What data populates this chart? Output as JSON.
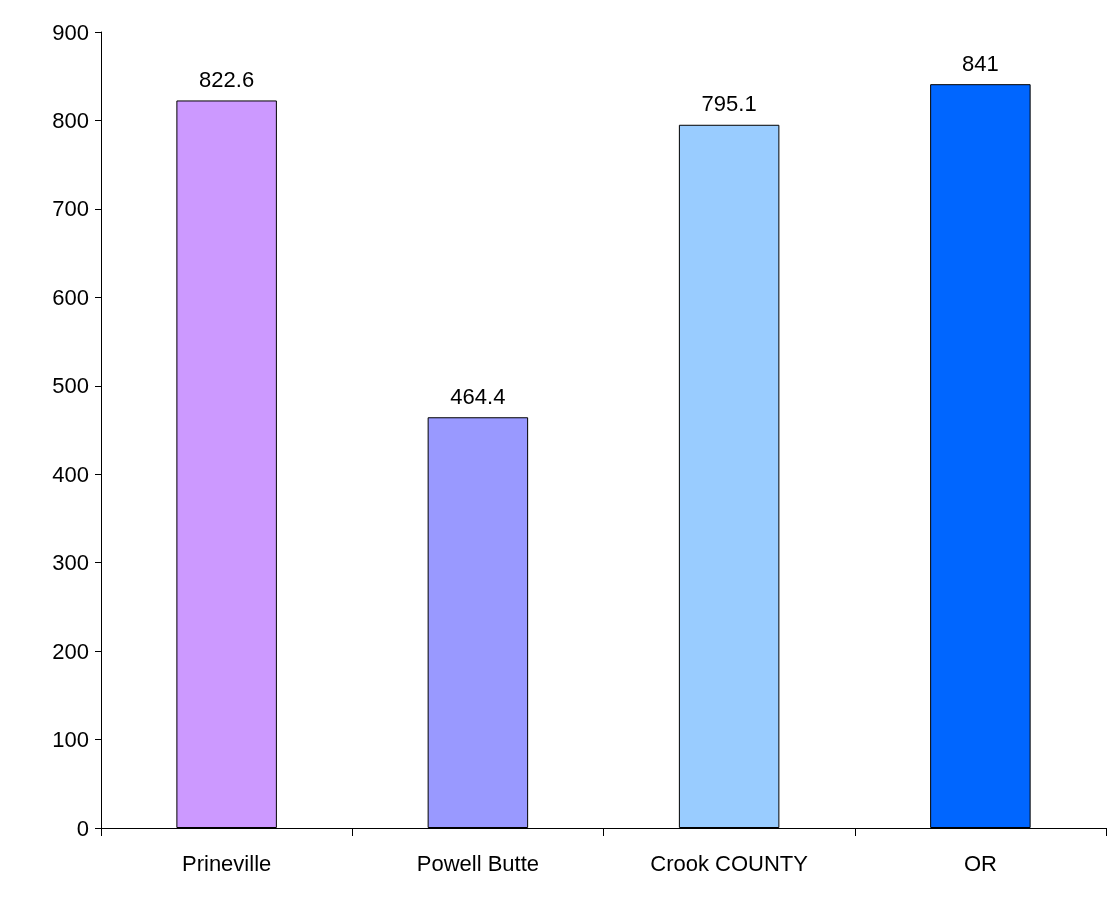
{
  "chart_data": {
    "type": "bar",
    "categories": [
      "Prineville",
      "Powell Butte",
      "Crook COUNTY",
      "OR"
    ],
    "values": [
      822.6,
      464.4,
      795.1,
      841
    ],
    "colors": [
      "#cc99ff",
      "#9999ff",
      "#99ccff",
      "#0066ff"
    ],
    "ylim": [
      0,
      900
    ],
    "yticks": [
      0,
      100,
      200,
      300,
      400,
      500,
      600,
      700,
      800,
      900
    ],
    "data_labels": true,
    "grid": false
  }
}
